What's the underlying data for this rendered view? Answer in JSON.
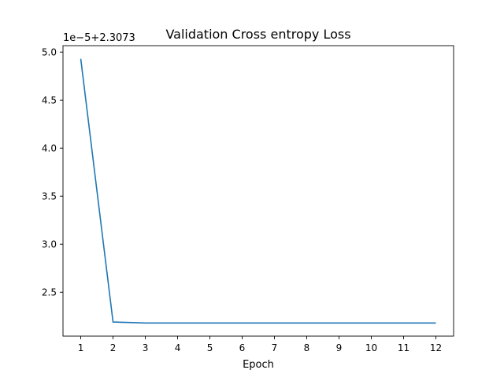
{
  "chart_data": {
    "type": "line",
    "title": "Validation Cross entropy Loss",
    "xlabel": "Epoch",
    "ylabel": "",
    "y_offset_label": "1e−5+2.3073",
    "x": [
      1,
      2,
      3,
      4,
      5,
      6,
      7,
      8,
      9,
      10,
      11,
      12
    ],
    "series": [
      {
        "values": [
          4.93,
          2.19,
          2.18,
          2.18,
          2.18,
          2.18,
          2.18,
          2.18,
          2.18,
          2.18,
          2.18,
          2.18
        ]
      }
    ],
    "x_ticks": [
      "1",
      "2",
      "3",
      "4",
      "5",
      "6",
      "7",
      "8",
      "9",
      "10",
      "11",
      "12"
    ],
    "y_ticks": [
      2.5,
      3.0,
      3.5,
      4.0,
      4.5,
      5.0
    ],
    "y_tick_labels": [
      "2.5",
      "3.0",
      "3.5",
      "4.0",
      "4.5",
      "5.0"
    ],
    "xlim": [
      0.45,
      12.55
    ],
    "ylim": [
      2.043,
      5.067
    ],
    "grid": false,
    "line_color": "#1f77b4"
  }
}
